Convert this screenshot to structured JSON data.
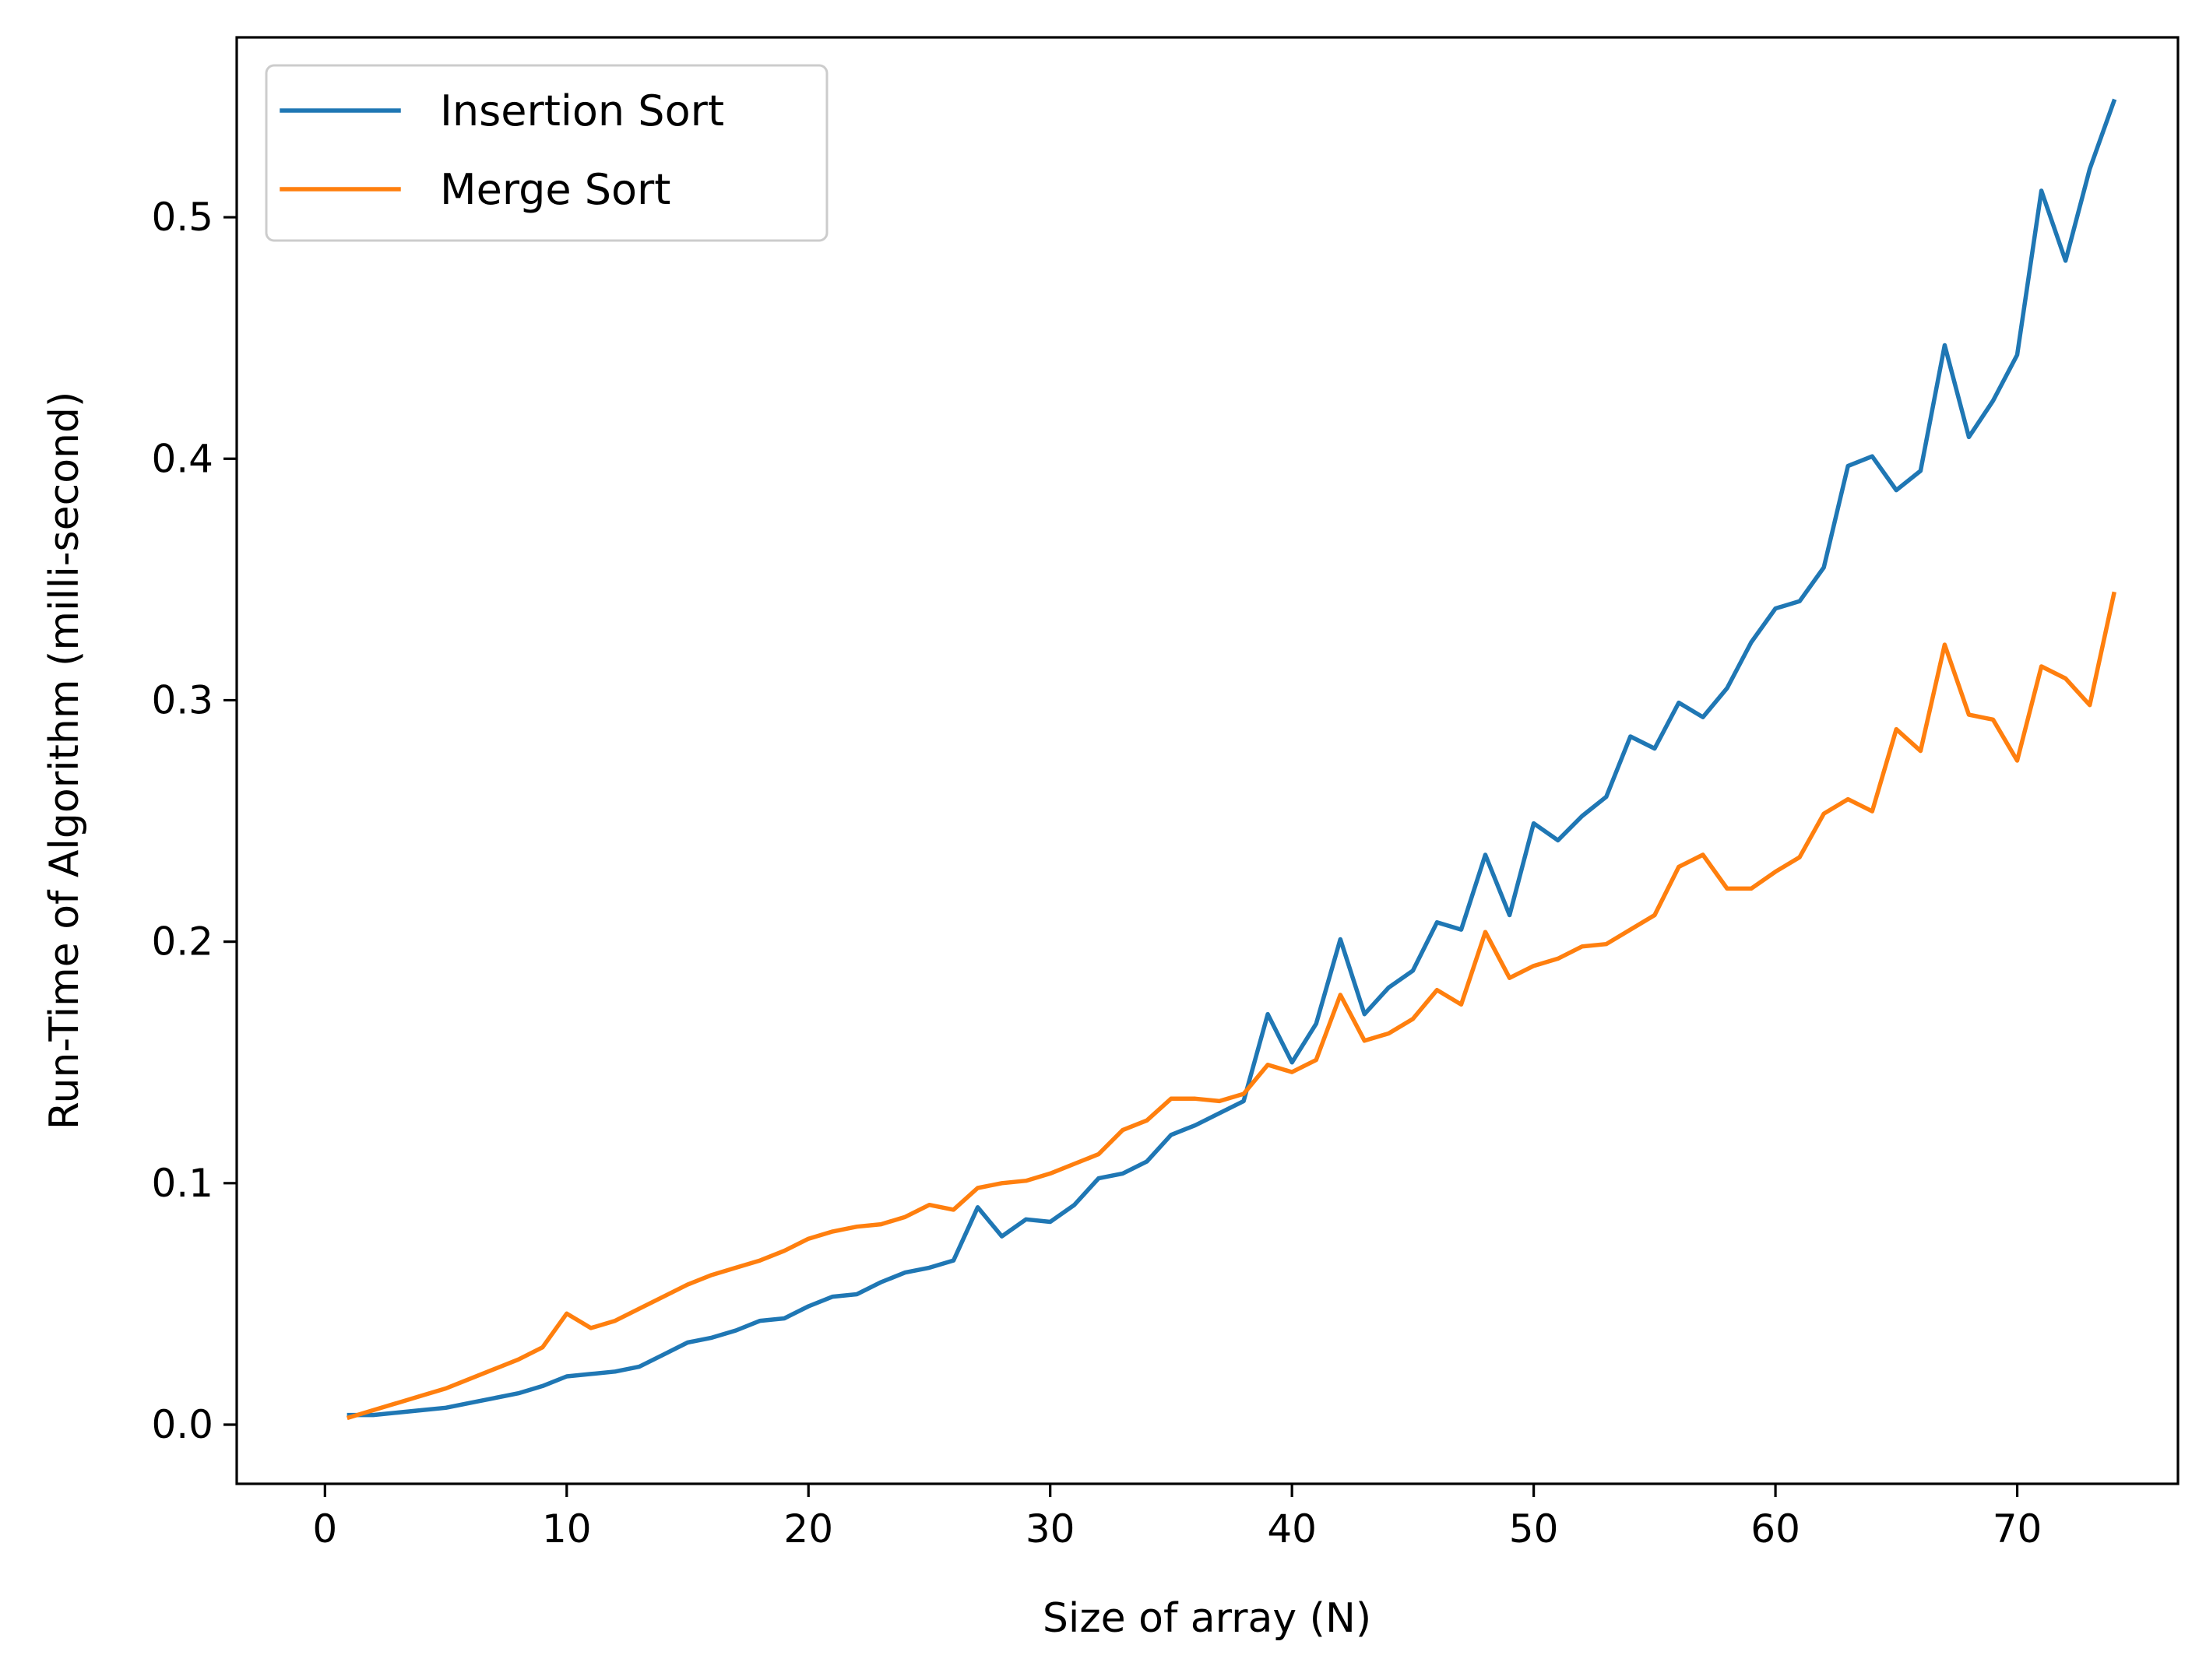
{
  "chart_data": {
    "type": "line",
    "title": "",
    "xlabel": "Size of array (N)",
    "ylabel": "Run-Time of Algorithm (milli-second)",
    "xlim": [
      -3.65,
      76.65
    ],
    "ylim": [
      -0.0245,
      0.5745
    ],
    "xticks": [
      0,
      10,
      20,
      30,
      40,
      50,
      60,
      70
    ],
    "xtick_labels": [
      "0",
      "10",
      "20",
      "30",
      "40",
      "50",
      "60",
      "70"
    ],
    "yticks": [
      0.0,
      0.1,
      0.2,
      0.3,
      0.4,
      0.5
    ],
    "ytick_labels": [
      "0.0",
      "0.1",
      "0.2",
      "0.3",
      "0.4",
      "0.5"
    ],
    "grid": false,
    "legend_position": "top-left",
    "x": [
      1,
      2,
      3,
      4,
      5,
      6,
      7,
      8,
      9,
      10,
      11,
      12,
      13,
      14,
      15,
      16,
      17,
      18,
      19,
      20,
      21,
      22,
      23,
      24,
      25,
      26,
      27,
      28,
      29,
      30,
      31,
      32,
      33,
      34,
      35,
      36,
      37,
      38,
      39,
      40,
      41,
      42,
      43,
      44,
      45,
      46,
      47,
      48,
      49,
      50,
      51,
      52,
      53,
      54,
      55,
      56,
      57,
      58,
      59,
      60,
      61,
      62,
      63,
      64,
      65,
      66,
      67,
      68,
      69,
      70,
      71,
      72,
      73,
      74
    ],
    "series": [
      {
        "name": "Insertion Sort",
        "color": "#1f77b4",
        "values": [
          0.004,
          0.004,
          0.005,
          0.006,
          0.007,
          0.009,
          0.011,
          0.013,
          0.016,
          0.02,
          0.021,
          0.022,
          0.024,
          0.029,
          0.034,
          0.036,
          0.039,
          0.043,
          0.044,
          0.049,
          0.053,
          0.054,
          0.059,
          0.063,
          0.065,
          0.068,
          0.09,
          0.078,
          0.085,
          0.084,
          0.091,
          0.102,
          0.104,
          0.109,
          0.12,
          0.124,
          0.129,
          0.134,
          0.17,
          0.15,
          0.166,
          0.201,
          0.17,
          0.181,
          0.188,
          0.208,
          0.205,
          0.236,
          0.211,
          0.249,
          0.242,
          0.252,
          0.26,
          0.285,
          0.28,
          0.299,
          0.293,
          0.305,
          0.324,
          0.338,
          0.341,
          0.355,
          0.397,
          0.401,
          0.387,
          0.395,
          0.447,
          0.409,
          0.424,
          0.443,
          0.511,
          0.482,
          0.52,
          0.548
        ]
      },
      {
        "name": "Merge Sort",
        "color": "#ff7f0e",
        "values": [
          0.003,
          0.006,
          0.009,
          0.012,
          0.015,
          0.019,
          0.023,
          0.027,
          0.032,
          0.046,
          0.04,
          0.043,
          0.048,
          0.053,
          0.058,
          0.062,
          0.065,
          0.068,
          0.072,
          0.077,
          0.08,
          0.082,
          0.083,
          0.086,
          0.091,
          0.089,
          0.098,
          0.1,
          0.101,
          0.104,
          0.108,
          0.112,
          0.122,
          0.126,
          0.135,
          0.135,
          0.134,
          0.137,
          0.149,
          0.146,
          0.151,
          0.178,
          0.159,
          0.162,
          0.168,
          0.18,
          0.174,
          0.204,
          0.185,
          0.19,
          0.193,
          0.198,
          0.199,
          0.205,
          0.211,
          0.231,
          0.236,
          0.222,
          0.222,
          0.229,
          0.235,
          0.253,
          0.259,
          0.254,
          0.288,
          0.279,
          0.323,
          0.294,
          0.292,
          0.275,
          0.314,
          0.309,
          0.298,
          0.344
        ]
      }
    ]
  }
}
